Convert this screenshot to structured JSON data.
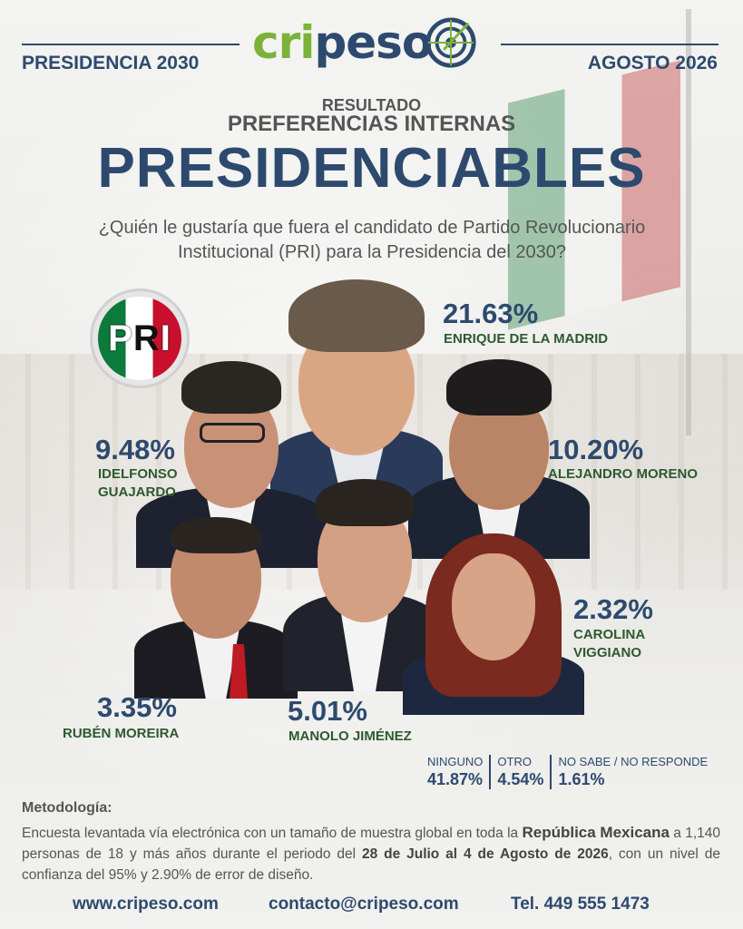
{
  "header": {
    "left_label": "PRESIDENCIA 2030",
    "right_label": "AGOSTO 2026",
    "logo": {
      "part1": "cripes",
      "part2": "",
      "icon": "target-icon"
    }
  },
  "titles": {
    "resultado": "RESULTADO",
    "preferencias": "PREFERENCIAS INTERNAS",
    "main": "PRESIDENCIABLES",
    "question": "¿Quién le gustaría que fuera el candidato de Partido Revolucionario Institucional (PRI) para la Presidencia del 2030?"
  },
  "party_logo": {
    "text": "PRI",
    "colors": [
      "#0b7a3a",
      "#ffffff",
      "#c8102e"
    ]
  },
  "candidates": [
    {
      "name": "ENRIQUE DE LA MADRID",
      "pct": "21.63%"
    },
    {
      "name": "IDELFONSO GUAJARDO",
      "name_line1": "IDELFONSO",
      "name_line2": "GUAJARDO",
      "pct": "9.48%"
    },
    {
      "name": "ALEJANDRO MORENO",
      "pct": "10.20%"
    },
    {
      "name": "CAROLINA VIGGIANO",
      "name_line1": "CAROLINA",
      "name_line2": "VIGGIANO",
      "pct": "2.32%"
    },
    {
      "name": "RUBÉN MOREIRA",
      "pct": "3.35%"
    },
    {
      "name": "MANOLO JIMÉNEZ",
      "pct": "5.01%"
    }
  ],
  "others": [
    {
      "label": "NINGUNO",
      "value": "41.87%"
    },
    {
      "label": "OTRO",
      "value": "4.54%"
    },
    {
      "label": "NO SABE / NO RESPONDE",
      "value": "1.61%"
    }
  ],
  "methodology": {
    "title": "Metodología:",
    "t1": "Encuesta levantada vía electrónica con un tamaño de muestra global en toda la ",
    "b1": "República Mexicana",
    "t2": " a 1,140 personas de 18 y más años durante el periodo del ",
    "b2": "28 de Julio al 4 de Agosto de 2026",
    "t3": ", con un nivel de confianza del 95% y 2.90% de error de diseño."
  },
  "footer": {
    "website": "www.cripeso.com",
    "email": "contacto@cripeso.com",
    "phone": "Tel. 449 555 1473"
  },
  "colors": {
    "navy": "#2d4a6e",
    "green": "#7bb33a",
    "dark_green": "#2d5a2f"
  }
}
